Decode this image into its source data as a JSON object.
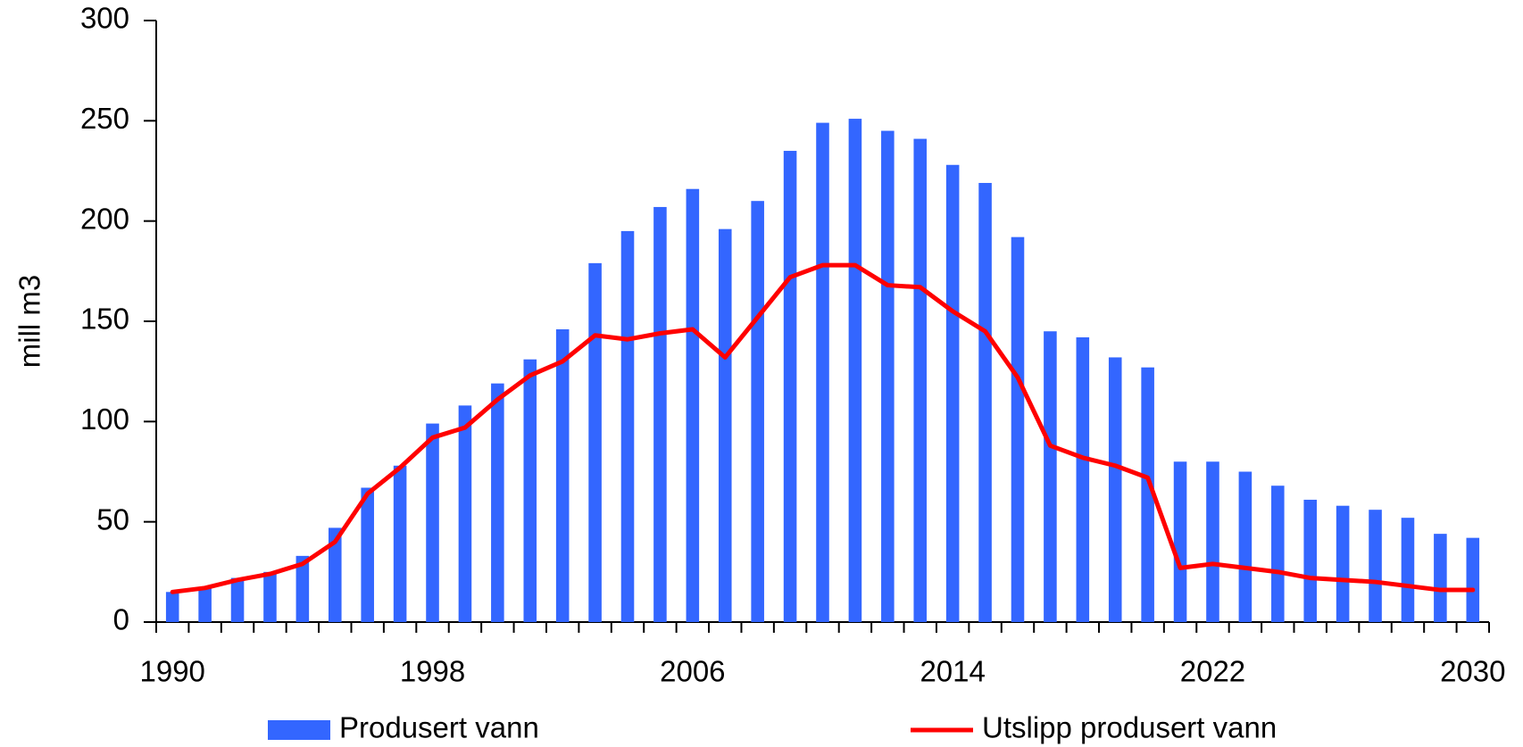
{
  "chart_data": {
    "type": "bar-line",
    "y_label": "mill m3",
    "categories": [
      "1990",
      null,
      null,
      null,
      null,
      null,
      null,
      null,
      "1998",
      null,
      null,
      null,
      null,
      null,
      null,
      null,
      "2006",
      null,
      null,
      null,
      null,
      null,
      null,
      null,
      "2014",
      null,
      null,
      null,
      null,
      null,
      null,
      null,
      "2022",
      null,
      null,
      null,
      null,
      null,
      null,
      null,
      "2030"
    ],
    "series": [
      {
        "name": "Produsert vann",
        "type": "bar",
        "color": "#3366ff",
        "values": [
          15,
          17,
          22,
          25,
          33,
          47,
          67,
          78,
          99,
          108,
          119,
          131,
          146,
          179,
          195,
          207,
          216,
          196,
          210,
          235,
          249,
          251,
          245,
          241,
          228,
          219,
          192,
          145,
          142,
          132,
          127,
          80,
          80,
          75,
          68,
          61,
          58,
          56,
          52,
          44,
          42
        ]
      },
      {
        "name": "Utslipp produsert vann",
        "type": "line",
        "color": "#ff0000",
        "values": [
          15,
          17,
          21,
          24,
          29,
          40,
          64,
          77,
          92,
          97,
          111,
          123,
          130,
          143,
          141,
          144,
          146,
          132,
          152,
          172,
          178,
          178,
          168,
          167,
          155,
          145,
          122,
          88,
          82,
          78,
          72,
          27,
          29,
          27,
          25,
          22,
          21,
          20,
          18,
          16,
          16
        ]
      }
    ],
    "ylim": [
      0,
      300
    ],
    "yticks": [
      0,
      50,
      100,
      150,
      200,
      250,
      300
    ]
  }
}
